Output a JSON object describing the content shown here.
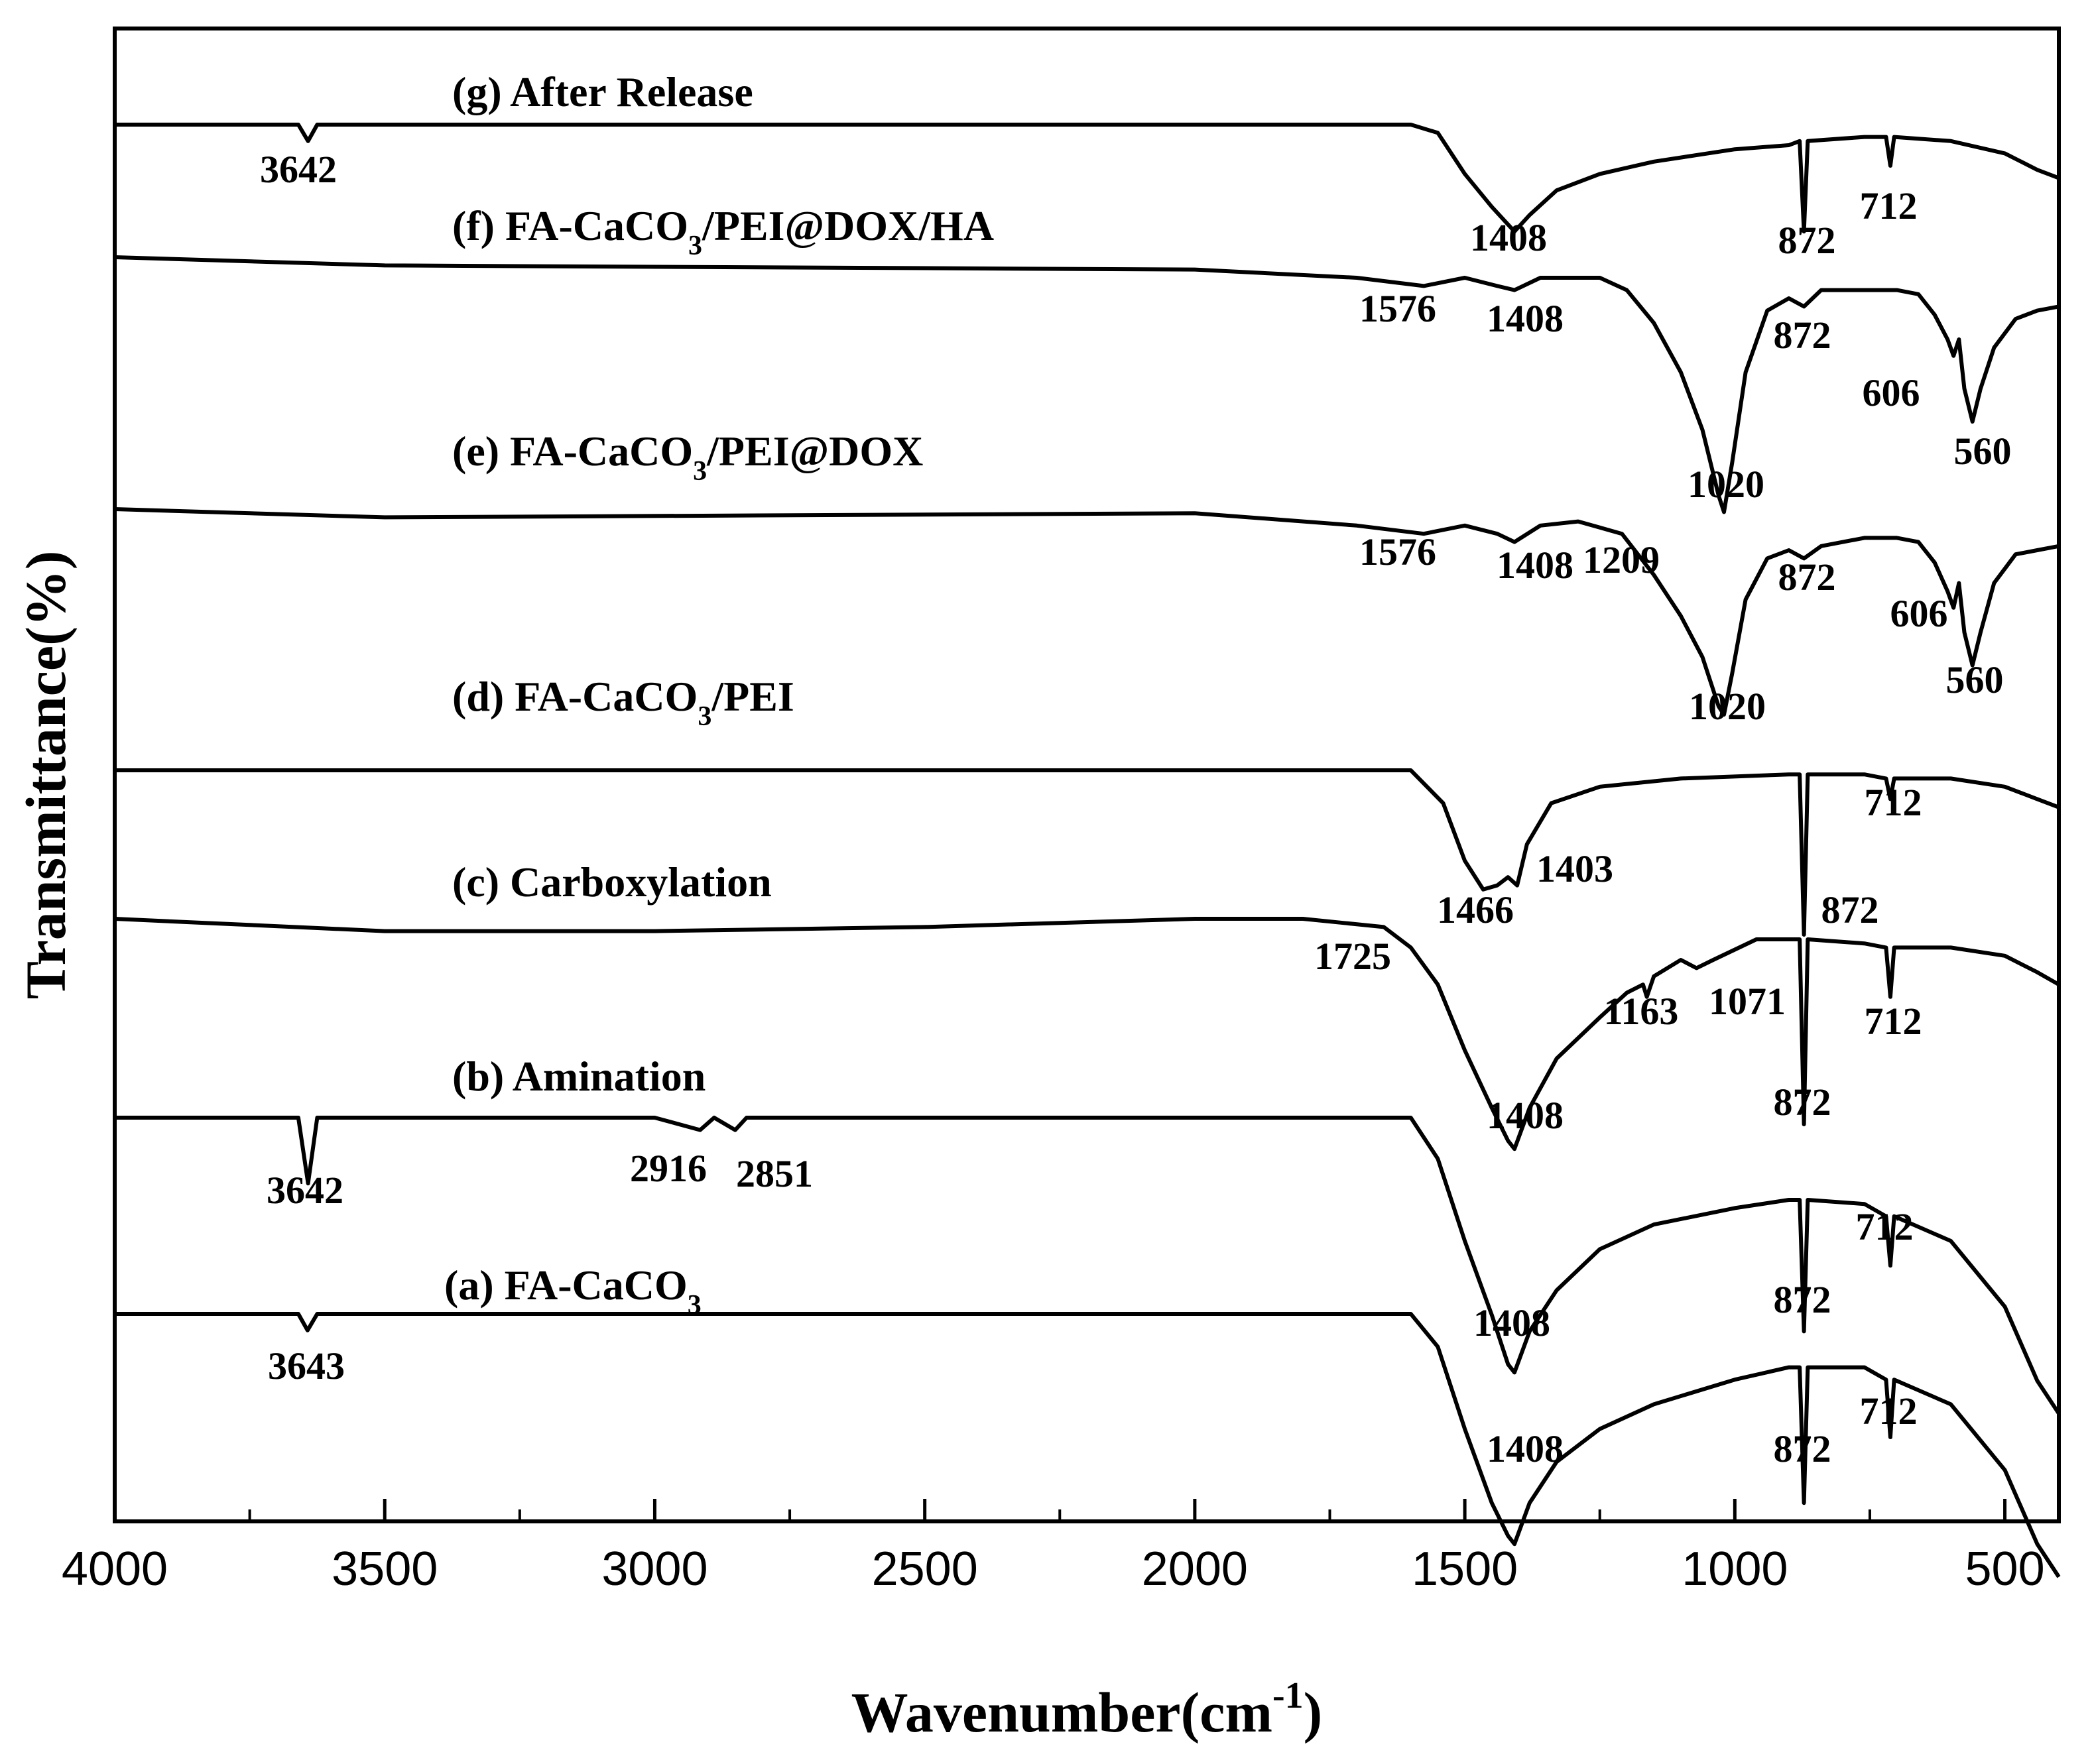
{
  "chart_data": {
    "type": "line",
    "xlabel": "Wavenumber(cm",
    "xlabel_sup": "-1",
    "xlabel_close": ")",
    "ylabel": "Transmittance(%)",
    "xlim": [
      4000,
      400
    ],
    "x_reversed": true,
    "xticks": [
      "4000",
      "3500",
      "3000",
      "2500",
      "2000",
      "1500",
      "1000",
      "500"
    ],
    "y_ticks_shown": false,
    "grid": false,
    "legend": "none",
    "series": [
      {
        "name": "(g) After Release",
        "label_parts": [
          "(g) After Release"
        ],
        "baseline": 0,
        "points": [
          [
            4000,
            0
          ],
          [
            3660,
            0
          ],
          [
            3642,
            -4
          ],
          [
            3625,
            0
          ],
          [
            1600,
            0
          ],
          [
            1550,
            -2
          ],
          [
            1500,
            -12
          ],
          [
            1450,
            -20
          ],
          [
            1408,
            -26
          ],
          [
            1380,
            -22
          ],
          [
            1330,
            -16
          ],
          [
            1250,
            -12
          ],
          [
            1150,
            -9
          ],
          [
            1000,
            -6
          ],
          [
            900,
            -5
          ],
          [
            880,
            -4
          ],
          [
            872,
            -26
          ],
          [
            865,
            -4
          ],
          [
            760,
            -3
          ],
          [
            720,
            -3
          ],
          [
            712,
            -10
          ],
          [
            705,
            -3
          ],
          [
            600,
            -4
          ],
          [
            500,
            -7
          ],
          [
            440,
            -11
          ],
          [
            400,
            -13
          ]
        ],
        "peaks": [
          "3642",
          "1408",
          "872",
          "712"
        ]
      },
      {
        "name": "(f) FA-CaCO3/PEI@DOX/HA",
        "label_parts": [
          "(f) FA-CaCO",
          "3",
          "/PEI@DOX/HA"
        ],
        "baseline": 0,
        "points": [
          [
            4000,
            0
          ],
          [
            3500,
            -2
          ],
          [
            2000,
            -3
          ],
          [
            1700,
            -5
          ],
          [
            1576,
            -7
          ],
          [
            1500,
            -5
          ],
          [
            1440,
            -7
          ],
          [
            1408,
            -8
          ],
          [
            1360,
            -5
          ],
          [
            1250,
            -5
          ],
          [
            1200,
            -8
          ],
          [
            1150,
            -16
          ],
          [
            1100,
            -28
          ],
          [
            1060,
            -42
          ],
          [
            1030,
            -58
          ],
          [
            1020,
            -62
          ],
          [
            1005,
            -50
          ],
          [
            980,
            -28
          ],
          [
            940,
            -13
          ],
          [
            900,
            -10
          ],
          [
            872,
            -12
          ],
          [
            840,
            -8
          ],
          [
            760,
            -8
          ],
          [
            700,
            -8
          ],
          [
            660,
            -9
          ],
          [
            630,
            -14
          ],
          [
            606,
            -20
          ],
          [
            595,
            -24
          ],
          [
            585,
            -20
          ],
          [
            575,
            -32
          ],
          [
            560,
            -40
          ],
          [
            545,
            -32
          ],
          [
            520,
            -22
          ],
          [
            480,
            -15
          ],
          [
            440,
            -13
          ],
          [
            400,
            -12
          ]
        ],
        "peaks": [
          "1576",
          "1408",
          "1020",
          "872",
          "606",
          "560"
        ]
      },
      {
        "name": "(e) FA-CaCO3/PEI@DOX",
        "label_parts": [
          "(e) FA-CaCO",
          "3",
          "/PEI@DOX"
        ],
        "baseline": 0,
        "points": [
          [
            4000,
            0
          ],
          [
            3500,
            -2
          ],
          [
            2000,
            -1
          ],
          [
            1700,
            -4
          ],
          [
            1576,
            -6
          ],
          [
            1500,
            -4
          ],
          [
            1440,
            -6
          ],
          [
            1408,
            -8
          ],
          [
            1360,
            -4
          ],
          [
            1290,
            -3
          ],
          [
            1209,
            -6
          ],
          [
            1150,
            -16
          ],
          [
            1100,
            -26
          ],
          [
            1060,
            -36
          ],
          [
            1030,
            -48
          ],
          [
            1020,
            -50
          ],
          [
            1005,
            -40
          ],
          [
            980,
            -22
          ],
          [
            940,
            -12
          ],
          [
            900,
            -10
          ],
          [
            872,
            -12
          ],
          [
            840,
            -9
          ],
          [
            760,
            -7
          ],
          [
            700,
            -7
          ],
          [
            660,
            -8
          ],
          [
            630,
            -13
          ],
          [
            606,
            -20
          ],
          [
            595,
            -24
          ],
          [
            585,
            -18
          ],
          [
            575,
            -30
          ],
          [
            560,
            -38
          ],
          [
            545,
            -30
          ],
          [
            520,
            -18
          ],
          [
            480,
            -11
          ],
          [
            440,
            -10
          ],
          [
            400,
            -9
          ]
        ],
        "peaks": [
          "1576",
          "1408",
          "1209",
          "1020",
          "872",
          "606",
          "560"
        ]
      },
      {
        "name": "(d) FA-CaCO3/PEI",
        "label_parts": [
          "(d) FA-CaCO",
          "3",
          "/PEI"
        ],
        "baseline": 0,
        "points": [
          [
            4000,
            0
          ],
          [
            3000,
            0
          ],
          [
            1600,
            0
          ],
          [
            1540,
            -8
          ],
          [
            1500,
            -22
          ],
          [
            1466,
            -29
          ],
          [
            1440,
            -28
          ],
          [
            1420,
            -26
          ],
          [
            1403,
            -28
          ],
          [
            1385,
            -18
          ],
          [
            1340,
            -8
          ],
          [
            1250,
            -4
          ],
          [
            1100,
            -2
          ],
          [
            900,
            -1
          ],
          [
            880,
            -1
          ],
          [
            872,
            -40
          ],
          [
            865,
            -1
          ],
          [
            760,
            -1
          ],
          [
            720,
            -2
          ],
          [
            712,
            -7
          ],
          [
            705,
            -2
          ],
          [
            600,
            -2
          ],
          [
            500,
            -4
          ],
          [
            440,
            -7
          ],
          [
            400,
            -9
          ]
        ],
        "peaks": [
          "1466",
          "1403",
          "872",
          "712"
        ]
      },
      {
        "name": "(c) Carboxylation",
        "label_parts": [
          "(c) Carboxylation"
        ],
        "baseline": 0,
        "points": [
          [
            4000,
            0
          ],
          [
            3500,
            -3
          ],
          [
            3000,
            -3
          ],
          [
            2500,
            -2
          ],
          [
            2000,
            0
          ],
          [
            1800,
            0
          ],
          [
            1725,
            -1
          ],
          [
            1650,
            -2
          ],
          [
            1600,
            -7
          ],
          [
            1550,
            -16
          ],
          [
            1500,
            -32
          ],
          [
            1450,
            -46
          ],
          [
            1420,
            -54
          ],
          [
            1408,
            -56
          ],
          [
            1380,
            -46
          ],
          [
            1330,
            -34
          ],
          [
            1250,
            -24
          ],
          [
            1200,
            -18
          ],
          [
            1170,
            -16
          ],
          [
            1163,
            -19
          ],
          [
            1150,
            -14
          ],
          [
            1100,
            -10
          ],
          [
            1071,
            -12
          ],
          [
            1040,
            -10
          ],
          [
            960,
            -5
          ],
          [
            900,
            -5
          ],
          [
            880,
            -5
          ],
          [
            872,
            -50
          ],
          [
            865,
            -5
          ],
          [
            760,
            -6
          ],
          [
            720,
            -7
          ],
          [
            712,
            -19
          ],
          [
            705,
            -7
          ],
          [
            600,
            -7
          ],
          [
            500,
            -9
          ],
          [
            440,
            -13
          ],
          [
            400,
            -16
          ]
        ],
        "peaks": [
          "1725",
          "1163",
          "1071",
          "1408",
          "872",
          "712"
        ]
      },
      {
        "name": "(b) Amination",
        "label_parts": [
          "(b) Amination"
        ],
        "baseline": 0,
        "points": [
          [
            4000,
            0
          ],
          [
            3660,
            0
          ],
          [
            3642,
            -16
          ],
          [
            3625,
            0
          ],
          [
            3000,
            0
          ],
          [
            2916,
            -3
          ],
          [
            2890,
            0
          ],
          [
            2851,
            -3
          ],
          [
            2830,
            0
          ],
          [
            2000,
            0
          ],
          [
            1600,
            0
          ],
          [
            1550,
            -10
          ],
          [
            1500,
            -30
          ],
          [
            1450,
            -48
          ],
          [
            1420,
            -60
          ],
          [
            1408,
            -62
          ],
          [
            1380,
            -52
          ],
          [
            1330,
            -42
          ],
          [
            1250,
            -32
          ],
          [
            1150,
            -26
          ],
          [
            1000,
            -22
          ],
          [
            900,
            -20
          ],
          [
            880,
            -20
          ],
          [
            872,
            -52
          ],
          [
            865,
            -20
          ],
          [
            760,
            -21
          ],
          [
            720,
            -24
          ],
          [
            712,
            -36
          ],
          [
            705,
            -24
          ],
          [
            600,
            -30
          ],
          [
            500,
            -46
          ],
          [
            440,
            -64
          ],
          [
            400,
            -72
          ]
        ],
        "peaks": [
          "3642",
          "2916",
          "2851",
          "1408",
          "872",
          "712"
        ]
      },
      {
        "name": "(a) FA-CaCO3",
        "label_parts": [
          "(a) FA-CaCO",
          "3",
          ""
        ],
        "baseline": 0,
        "points": [
          [
            4000,
            0
          ],
          [
            3660,
            0
          ],
          [
            3643,
            -4
          ],
          [
            3625,
            0
          ],
          [
            3000,
            0
          ],
          [
            2000,
            0
          ],
          [
            1600,
            0
          ],
          [
            1550,
            -8
          ],
          [
            1500,
            -28
          ],
          [
            1450,
            -46
          ],
          [
            1420,
            -54
          ],
          [
            1408,
            -56
          ],
          [
            1380,
            -46
          ],
          [
            1330,
            -36
          ],
          [
            1250,
            -28
          ],
          [
            1150,
            -22
          ],
          [
            1000,
            -16
          ],
          [
            900,
            -13
          ],
          [
            880,
            -13
          ],
          [
            872,
            -46
          ],
          [
            865,
            -13
          ],
          [
            760,
            -13
          ],
          [
            720,
            -16
          ],
          [
            712,
            -30
          ],
          [
            705,
            -16
          ],
          [
            600,
            -22
          ],
          [
            500,
            -38
          ],
          [
            440,
            -56
          ],
          [
            400,
            -64
          ]
        ],
        "peaks": [
          "3643",
          "1408",
          "872",
          "712"
        ]
      }
    ]
  }
}
